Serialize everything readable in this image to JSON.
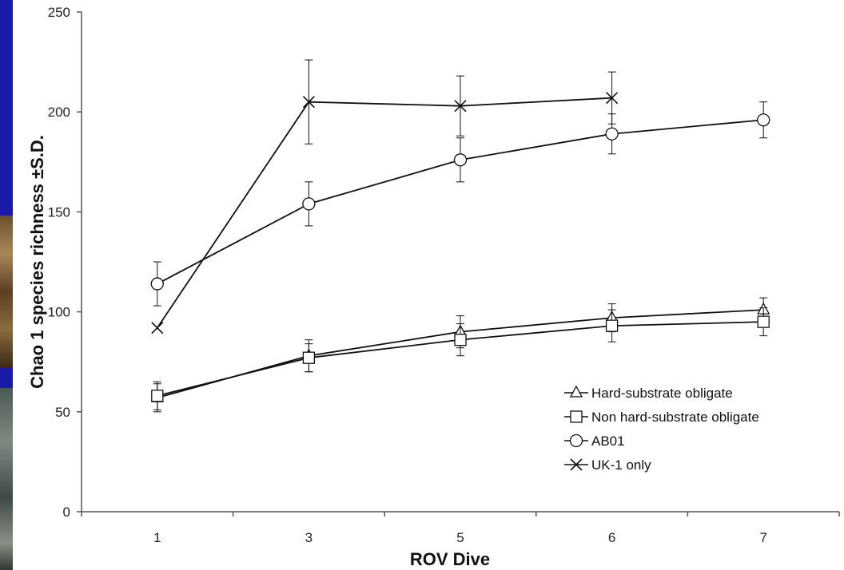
{
  "chart_data": {
    "type": "line",
    "xlabel": "ROV Dive",
    "ylabel": "Chao 1 species richness ±S.D.",
    "categories": [
      "1",
      "3",
      "5",
      "6",
      "7"
    ],
    "ylim": [
      0,
      250
    ],
    "yticks": [
      "0",
      "50",
      "100",
      "150",
      "200",
      "250"
    ],
    "grid": false,
    "legend_position": "bottom-right",
    "series": [
      {
        "name": "Hard-substrate obligate",
        "marker": "triangle",
        "values": [
          57,
          78,
          90,
          97,
          101
        ],
        "sd": [
          7,
          8,
          8,
          7,
          6
        ]
      },
      {
        "name": "Non hard-substrate obligate",
        "marker": "square",
        "values": [
          58,
          77,
          86,
          93,
          95
        ],
        "sd": [
          7,
          7,
          8,
          8,
          7
        ]
      },
      {
        "name": "AB01",
        "marker": "circle",
        "values": [
          114,
          154,
          176,
          189,
          196
        ],
        "sd": [
          11,
          11,
          11,
          10,
          9
        ]
      },
      {
        "name": "UK-1 only",
        "marker": "cross",
        "values": [
          92,
          205,
          203,
          207,
          null
        ],
        "sd": [
          0,
          21,
          15,
          13,
          null
        ]
      }
    ],
    "colors": {
      "line": "#111111",
      "axis": "#555555",
      "background": "#ffffff",
      "frame": "#1a1aa8"
    }
  }
}
